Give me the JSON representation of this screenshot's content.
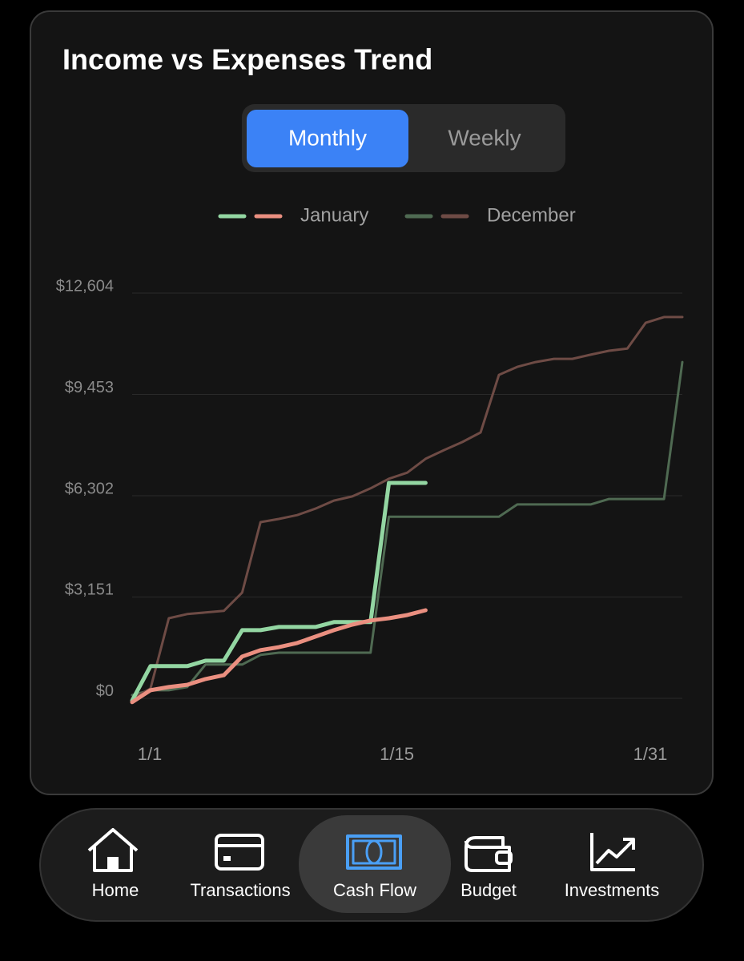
{
  "chart_data": {
    "type": "line",
    "title": "Income vs Expenses Trend",
    "x": [
      1,
      2,
      3,
      4,
      5,
      6,
      7,
      8,
      9,
      10,
      11,
      12,
      13,
      14,
      15,
      16,
      17,
      18,
      19,
      20,
      21,
      22,
      23,
      24,
      25,
      26,
      27,
      28,
      29,
      30,
      31
    ],
    "xlim": [
      1,
      31
    ],
    "xticks": [
      {
        "value": 1,
        "label": "1/1"
      },
      {
        "value": 15,
        "label": "1/15"
      },
      {
        "value": 31,
        "label": "1/31"
      }
    ],
    "ylim": [
      -400,
      12604
    ],
    "yticks": [
      {
        "value": 0,
        "label": "$0"
      },
      {
        "value": 3151,
        "label": "$3,151"
      },
      {
        "value": 6302,
        "label": "$6,302"
      },
      {
        "value": 9453,
        "label": "$9,453"
      },
      {
        "value": 12604,
        "label": "$12,604"
      }
    ],
    "grid": true,
    "series": [
      {
        "name": "January",
        "lines": [
          {
            "color": "#93d6a2",
            "values": [
              -270,
              800,
              800,
              800,
              970,
              970,
              1920,
              1920,
              2020,
              2020,
              2020,
              2170,
              2170,
              2170,
              6500,
              6500,
              6500,
              null,
              null,
              null,
              null,
              null,
              null,
              null,
              null,
              null,
              null,
              null,
              null,
              null,
              null
            ]
          },
          {
            "color": "#ea8f80",
            "values": [
              -320,
              50,
              150,
              220,
              400,
              520,
              1100,
              1300,
              1390,
              1520,
              1720,
              1920,
              2090,
              2220,
              2290,
              2390,
              2540,
              null,
              null,
              null,
              null,
              null,
              null,
              null,
              null,
              null,
              null,
              null,
              null,
              null,
              null
            ]
          }
        ]
      },
      {
        "name": "December",
        "lines": [
          {
            "color": "#4f6a52",
            "values": [
              -100,
              50,
              50,
              150,
              850,
              850,
              850,
              1150,
              1220,
              1220,
              1220,
              1220,
              1220,
              1220,
              5450,
              5450,
              5450,
              5450,
              5450,
              5450,
              5450,
              5830,
              5830,
              5830,
              5830,
              5830,
              6000,
              6000,
              6000,
              6000,
              10260
            ]
          },
          {
            "color": "#6e4b45",
            "values": [
              -200,
              100,
              2290,
              2420,
              2470,
              2520,
              3090,
              5280,
              5380,
              5500,
              5700,
              5950,
              6080,
              6330,
              6630,
              6820,
              7250,
              7520,
              7770,
              8070,
              9860,
              10110,
              10260,
              10360,
              10360,
              10490,
              10610,
              10680,
              11480,
              11660,
              11660
            ]
          }
        ]
      }
    ]
  },
  "toggle": {
    "options": [
      "Monthly",
      "Weekly"
    ]
  },
  "nav": {
    "items": [
      "Home",
      "Transactions",
      "Cash Flow",
      "Budget",
      "Investments"
    ]
  }
}
